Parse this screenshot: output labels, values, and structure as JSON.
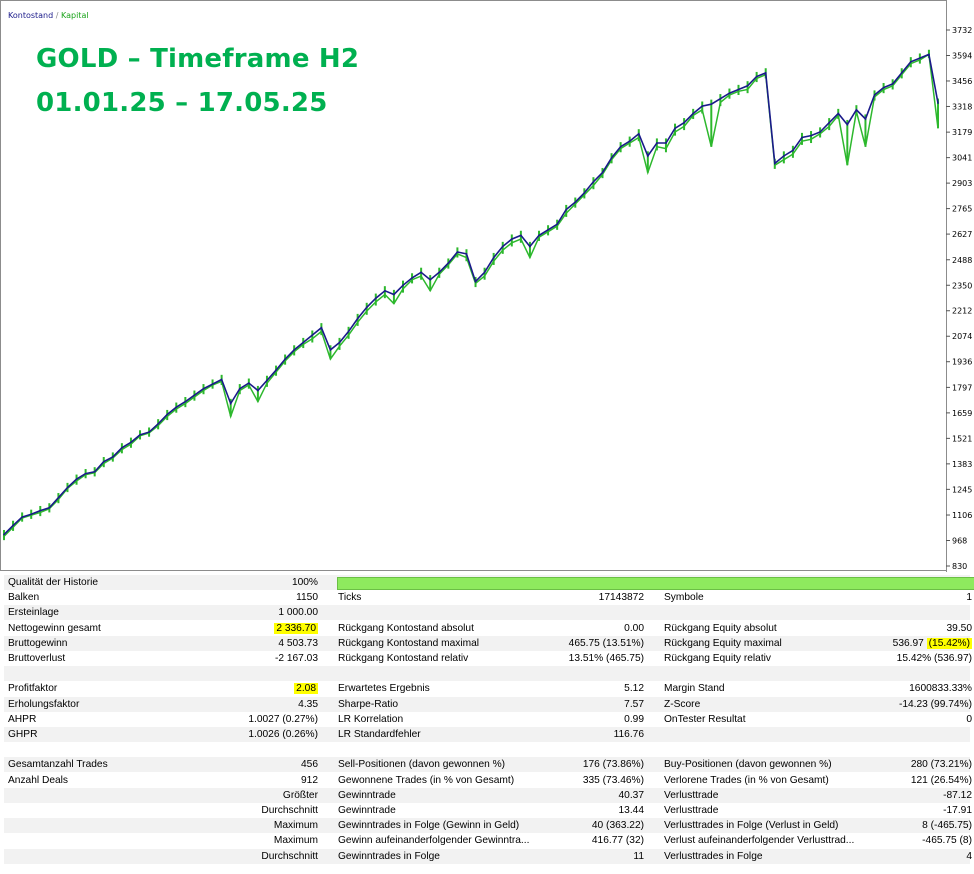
{
  "chart": {
    "legend": {
      "balance": "Kontostand",
      "separator": "/",
      "equity": "Kapital"
    },
    "overlay": {
      "line1": "GOLD – Timeframe H2",
      "line2": "01.01.25 – 17.05.25"
    },
    "y_ticks": [
      "3732",
      "3594",
      "3456",
      "3318",
      "3179",
      "3041",
      "2903",
      "2765",
      "2627",
      "2488",
      "2350",
      "2212",
      "2074",
      "1936",
      "1797",
      "1659",
      "1521",
      "1383",
      "1245",
      "1106",
      "968",
      "830"
    ],
    "colors": {
      "balance": "#1a1a8a",
      "equity": "#2db82d",
      "overlay_text": "#00b050"
    }
  },
  "chart_data": {
    "type": "line",
    "title": "",
    "xlabel": "",
    "ylabel": "",
    "ylim": [
      830,
      3732
    ],
    "series": [
      {
        "name": "Kontostand",
        "values": [
          1000,
          1050,
          1095,
          1110,
          1130,
          1145,
          1200,
          1255,
          1300,
          1330,
          1340,
          1395,
          1420,
          1470,
          1500,
          1540,
          1555,
          1600,
          1650,
          1690,
          1720,
          1755,
          1790,
          1815,
          1840,
          1710,
          1790,
          1820,
          1780,
          1835,
          1890,
          1950,
          2000,
          2040,
          2080,
          2120,
          2000,
          2040,
          2100,
          2170,
          2230,
          2280,
          2320,
          2300,
          2350,
          2390,
          2420,
          2380,
          2420,
          2470,
          2530,
          2520,
          2370,
          2420,
          2500,
          2560,
          2600,
          2620,
          2560,
          2620,
          2650,
          2680,
          2760,
          2800,
          2850,
          2910,
          2960,
          3040,
          3100,
          3130,
          3170,
          3050,
          3120,
          3120,
          3200,
          3230,
          3280,
          3320,
          3330,
          3360,
          3390,
          3410,
          3430,
          3480,
          3500,
          3010,
          3050,
          3080,
          3150,
          3160,
          3180,
          3230,
          3280,
          3220,
          3300,
          3250,
          3380,
          3420,
          3440,
          3500,
          3560,
          3580,
          3600,
          3336
        ]
      },
      {
        "name": "Kapital",
        "values": [
          990,
          1040,
          1090,
          1105,
          1120,
          1140,
          1190,
          1250,
          1290,
          1325,
          1335,
          1385,
          1415,
          1460,
          1490,
          1535,
          1550,
          1590,
          1640,
          1680,
          1710,
          1745,
          1780,
          1810,
          1830,
          1640,
          1780,
          1810,
          1720,
          1820,
          1880,
          1940,
          1990,
          2030,
          2060,
          2100,
          1950,
          2020,
          2080,
          2150,
          2210,
          2260,
          2300,
          2250,
          2330,
          2380,
          2400,
          2320,
          2410,
          2460,
          2520,
          2500,
          2360,
          2400,
          2480,
          2540,
          2580,
          2600,
          2500,
          2610,
          2640,
          2670,
          2740,
          2790,
          2840,
          2890,
          2950,
          3030,
          3090,
          3120,
          3150,
          2960,
          3100,
          3090,
          3180,
          3210,
          3270,
          3300,
          3100,
          3340,
          3380,
          3400,
          3410,
          3470,
          3490,
          3000,
          3030,
          3060,
          3130,
          3140,
          3170,
          3210,
          3270,
          3000,
          3290,
          3100,
          3370,
          3410,
          3430,
          3490,
          3550,
          3570,
          3600,
          3200
        ]
      }
    ]
  },
  "report": {
    "rows": [
      {
        "style": "odd",
        "c1": "Qualität der Historie",
        "c2": "100%",
        "progress": true
      },
      {
        "style": "even",
        "c1": "Balken",
        "c2": "1150",
        "c3": "Ticks",
        "c4": "17143872",
        "c5": "Symbole",
        "c6": "1"
      },
      {
        "style": "odd",
        "c1": "Ersteinlage",
        "c2": "1 000.00"
      },
      {
        "style": "even",
        "c1": "Nettogewinn gesamt",
        "c2": "2 336.70",
        "c2hl": true,
        "c3": "Rückgang Kontostand absolut",
        "c4": "0.00",
        "c5": "Rückgang Equity absolut",
        "c6": "39.50"
      },
      {
        "style": "odd",
        "c1": "Bruttogewinn",
        "c2": "4 503.73",
        "c3": "Rückgang Kontostand maximal",
        "c4": "465.75 (13.51%)",
        "c5": "Rückgang Equity maximal",
        "c6": "536.97 ",
        "c6hl": "(15.42%)"
      },
      {
        "style": "even",
        "c1": "Bruttoverlust",
        "c2": "-2 167.03",
        "c3": "Rückgang Kontostand relativ",
        "c4": "13.51% (465.75)",
        "c5": "Rückgang Equity relativ",
        "c6": "15.42% (536.97)"
      },
      {
        "style": "odd"
      },
      {
        "style": "even",
        "c1": "Profitfaktor",
        "c2": "2.08",
        "c2hl": true,
        "c3": "Erwartetes Ergebnis",
        "c4": "5.12",
        "c5": "Margin Stand",
        "c6": "1600833.33%"
      },
      {
        "style": "odd",
        "c1": "Erholungsfaktor",
        "c2": "4.35",
        "c3": "Sharpe-Ratio",
        "c4": "7.57",
        "c5": "Z-Score",
        "c6": "-14.23 (99.74%)"
      },
      {
        "style": "even",
        "c1": "AHPR",
        "c2": "1.0027 (0.27%)",
        "c3": "LR Korrelation",
        "c4": "0.99",
        "c5": "OnTester Resultat",
        "c6": "0"
      },
      {
        "style": "odd",
        "c1": "GHPR",
        "c2": "1.0026 (0.26%)",
        "c3": "LR Standardfehler",
        "c4": "116.76"
      },
      {
        "style": "even"
      },
      {
        "style": "odd",
        "c1": "Gesamtanzahl Trades",
        "c2": "456",
        "c3": "Sell-Positionen (davon gewonnen %)",
        "c4": "176 (73.86%)",
        "c5": "Buy-Positionen (davon gewonnen %)",
        "c6": "280 (73.21%)"
      },
      {
        "style": "even",
        "c1": "Anzahl Deals",
        "c2": "912",
        "c3": "Gewonnene Trades (in % von Gesamt)",
        "c4": "335 (73.46%)",
        "c5": "Verlorene Trades (in % von Gesamt)",
        "c6": "121 (26.54%)"
      },
      {
        "style": "odd",
        "c2": "Größter",
        "c3": "Gewinntrade",
        "c4": "40.37",
        "c5": "Verlusttrade",
        "c6": "-87.12"
      },
      {
        "style": "even",
        "c2": "Durchschnitt",
        "c3": "Gewinntrade",
        "c4": "13.44",
        "c5": "Verlusttrade",
        "c6": "-17.91"
      },
      {
        "style": "odd",
        "c2": "Maximum",
        "c3": "Gewinntrades in Folge (Gewinn in Geld)",
        "c4": "40 (363.22)",
        "c5": "Verlusttrades in Folge (Verlust in Geld)",
        "c6": "8 (-465.75)"
      },
      {
        "style": "even",
        "c2": "Maximum",
        "c3": "Gewinn aufeinanderfolgender Gewinntra...",
        "c4": "416.77 (32)",
        "c5": "Verlust aufeinanderfolgender Verlusttrad...",
        "c6": "-465.75 (8)"
      },
      {
        "style": "odd",
        "c2": "Durchschnitt",
        "c3": "Gewinntrades in Folge",
        "c4": "11",
        "c5": "Verlusttrades in Folge",
        "c6": "4"
      }
    ]
  }
}
